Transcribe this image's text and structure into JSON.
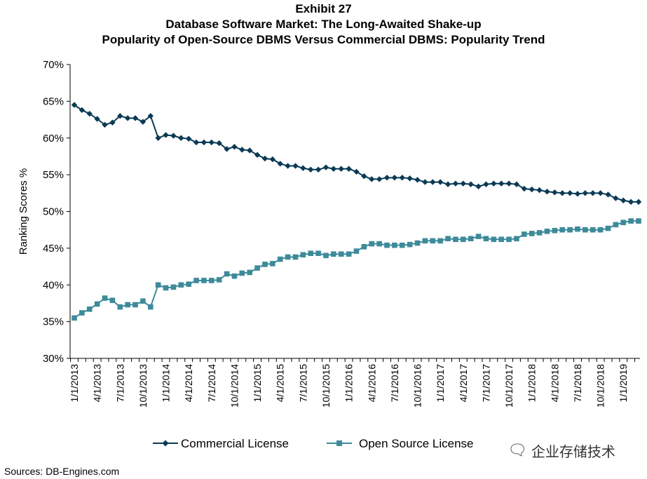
{
  "chart_data": {
    "type": "line",
    "exhibit": "Exhibit 27",
    "title": "Database Software Market: The Long-Awaited Shake-up",
    "subtitle": "Popularity of Open-Source DBMS Versus Commercial DBMS: Popularity Trend",
    "ylabel": "Ranking Scores %",
    "xlabel": "",
    "ylim": [
      30,
      70
    ],
    "yticks": [
      "30%",
      "35%",
      "40%",
      "45%",
      "50%",
      "55%",
      "60%",
      "65%",
      "70%"
    ],
    "xtick_labels": [
      "1/1/2013",
      "4/1/2013",
      "7/1/2013",
      "10/1/2013",
      "1/1/2014",
      "4/1/2014",
      "7/1/2014",
      "10/1/2014",
      "1/1/2015",
      "4/1/2015",
      "7/1/2015",
      "10/1/2015",
      "1/1/2016",
      "4/1/2016",
      "7/1/2016",
      "10/1/2016",
      "1/1/2017",
      "4/1/2017",
      "7/1/2017",
      "10/1/2017",
      "1/1/2018",
      "4/1/2018",
      "7/1/2018",
      "10/1/2018",
      "1/1/2019"
    ],
    "x_start": "1/1/2013",
    "x_frequency": "monthly",
    "legend_position": "bottom",
    "series": [
      {
        "name": "Commercial License",
        "color": "#0b3a55",
        "marker": "diamond",
        "values": [
          64.5,
          63.8,
          63.3,
          62.6,
          61.8,
          62.1,
          63.0,
          62.7,
          62.7,
          62.2,
          63.0,
          60.0,
          60.4,
          60.3,
          60.0,
          59.9,
          59.4,
          59.4,
          59.4,
          59.3,
          58.5,
          58.8,
          58.4,
          58.3,
          57.7,
          57.2,
          57.1,
          56.5,
          56.2,
          56.2,
          55.9,
          55.7,
          55.7,
          56.0,
          55.8,
          55.8,
          55.8,
          55.4,
          54.8,
          54.4,
          54.4,
          54.6,
          54.6,
          54.6,
          54.5,
          54.3,
          54.0,
          54.0,
          54.0,
          53.7,
          53.8,
          53.8,
          53.7,
          53.4,
          53.7,
          53.8,
          53.8,
          53.8,
          53.7,
          53.1,
          53.0,
          52.9,
          52.7,
          52.6,
          52.5,
          52.5,
          52.4,
          52.5,
          52.5,
          52.5,
          52.3,
          51.8,
          51.5,
          51.3,
          51.3
        ]
      },
      {
        "name": "Open Source License",
        "color": "#3d8a9a",
        "marker": "square",
        "values": [
          35.5,
          36.2,
          36.7,
          37.4,
          38.2,
          37.9,
          37.0,
          37.3,
          37.3,
          37.8,
          37.0,
          40.0,
          39.6,
          39.7,
          40.0,
          40.1,
          40.6,
          40.6,
          40.6,
          40.7,
          41.5,
          41.2,
          41.6,
          41.7,
          42.3,
          42.8,
          42.9,
          43.5,
          43.8,
          43.8,
          44.1,
          44.3,
          44.3,
          44.0,
          44.2,
          44.2,
          44.2,
          44.6,
          45.2,
          45.6,
          45.6,
          45.4,
          45.4,
          45.4,
          45.5,
          45.7,
          46.0,
          46.0,
          46.0,
          46.3,
          46.2,
          46.2,
          46.3,
          46.6,
          46.3,
          46.2,
          46.2,
          46.2,
          46.3,
          46.9,
          47.0,
          47.1,
          47.3,
          47.4,
          47.5,
          47.5,
          47.6,
          47.5,
          47.5,
          47.5,
          47.7,
          48.2,
          48.5,
          48.7,
          48.7
        ]
      }
    ]
  },
  "footer": {
    "sources": "Sources: DB-Engines.com",
    "watermark": "企业存储技术",
    "watermark_icon": "wechat-icon"
  }
}
